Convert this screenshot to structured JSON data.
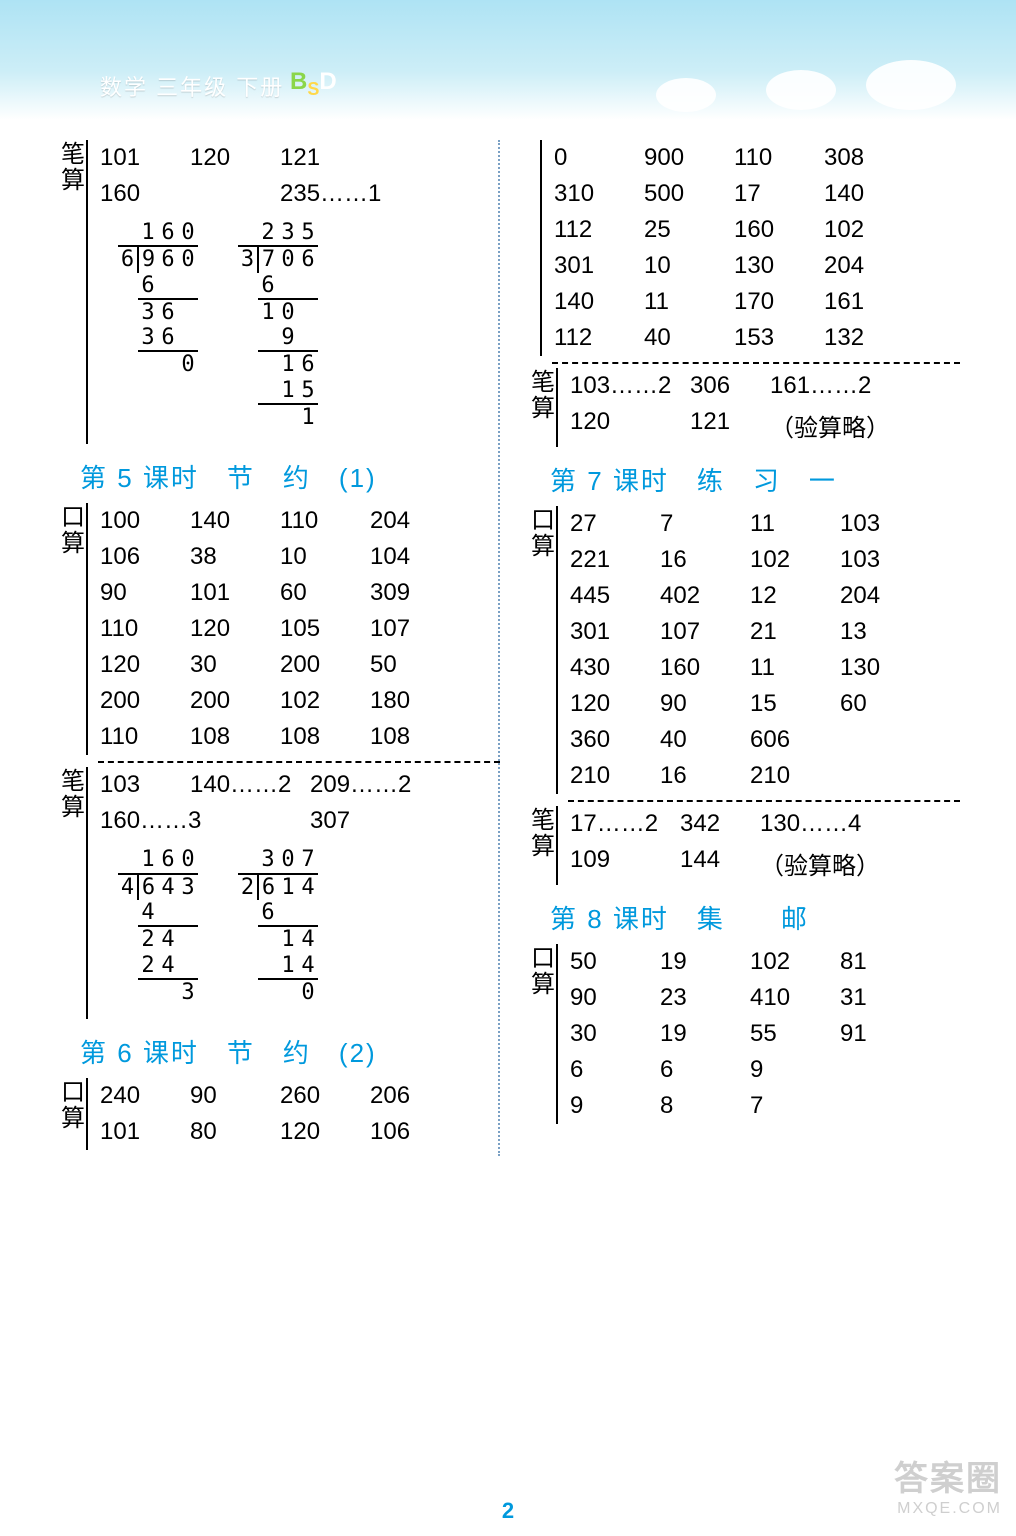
{
  "header": {
    "title": "数学 三年级 下册",
    "bsd": {
      "B": "B",
      "S": "S",
      "D": "D"
    }
  },
  "colors": {
    "accent": "#0099dd",
    "text": "#000000",
    "header_bg_from": "#aee3f4",
    "header_bg_to": "#ffffff"
  },
  "page_number": "2",
  "watermark": {
    "top": "答案圈",
    "bottom": "MXQE.COM"
  },
  "left": {
    "bisuan1": {
      "label": "笔算",
      "rows": [
        [
          "101",
          "120",
          "121",
          ""
        ],
        [
          "160",
          "",
          "235……1",
          ""
        ]
      ],
      "col_widths": [
        "90px",
        "90px",
        "150px",
        "0px"
      ]
    },
    "longdiv1a": {
      "quotient": [
        "1",
        "6",
        "0"
      ],
      "divisor": "6",
      "dividend": [
        "9",
        "6",
        "0"
      ],
      "steps": [
        {
          "vals": [
            "6",
            "",
            ""
          ],
          "underline": 3
        },
        {
          "vals": [
            "3",
            "6",
            ""
          ],
          "underline": 0
        },
        {
          "vals": [
            "3",
            "6",
            ""
          ],
          "underline": 3
        },
        {
          "vals": [
            "",
            "",
            "0"
          ],
          "underline": 0
        }
      ]
    },
    "longdiv1b": {
      "quotient": [
        "2",
        "3",
        "5"
      ],
      "divisor": "3",
      "dividend": [
        "7",
        "0",
        "6"
      ],
      "steps": [
        {
          "vals": [
            "6",
            "",
            ""
          ],
          "underline": 3
        },
        {
          "vals": [
            "1",
            "0",
            ""
          ],
          "underline": 0
        },
        {
          "vals": [
            "",
            "9",
            ""
          ],
          "underline": 3
        },
        {
          "vals": [
            "",
            "1",
            "6"
          ],
          "underline": 0
        },
        {
          "vals": [
            "",
            "1",
            "5"
          ],
          "underline": 3
        },
        {
          "vals": [
            "",
            "",
            "1"
          ],
          "underline": 0
        }
      ]
    },
    "title5": "第 5 课时　节　约　(1)",
    "kousuan5": {
      "label": "口算",
      "cols": [
        "90px",
        "90px",
        "90px",
        "90px"
      ],
      "rows": [
        [
          "100",
          "140",
          "110",
          "204"
        ],
        [
          "106",
          "38",
          "10",
          "104"
        ],
        [
          "90",
          "101",
          "60",
          "309"
        ],
        [
          "110",
          "120",
          "105",
          "107"
        ],
        [
          "120",
          "30",
          "200",
          "50"
        ],
        [
          "200",
          "200",
          "102",
          "180"
        ],
        [
          "110",
          "108",
          "108",
          "108"
        ]
      ]
    },
    "bisuan5": {
      "label": "笔算",
      "rows": [
        [
          "103",
          "140……2",
          "209……2",
          ""
        ],
        [
          "160……3",
          "",
          "307",
          ""
        ]
      ],
      "col_widths": [
        "90px",
        "120px",
        "130px",
        "0px"
      ]
    },
    "longdiv5a": {
      "quotient": [
        "1",
        "6",
        "0"
      ],
      "divisor": "4",
      "dividend": [
        "6",
        "4",
        "3"
      ],
      "steps": [
        {
          "vals": [
            "4",
            "",
            ""
          ],
          "underline": 3
        },
        {
          "vals": [
            "2",
            "4",
            ""
          ],
          "underline": 0
        },
        {
          "vals": [
            "2",
            "4",
            ""
          ],
          "underline": 3
        },
        {
          "vals": [
            "",
            "",
            "3"
          ],
          "underline": 0
        }
      ]
    },
    "longdiv5b": {
      "quotient": [
        "3",
        "0",
        "7"
      ],
      "divisor": "2",
      "dividend": [
        "6",
        "1",
        "4"
      ],
      "steps": [
        {
          "vals": [
            "6",
            "",
            ""
          ],
          "underline": 3
        },
        {
          "vals": [
            "",
            "1",
            "4"
          ],
          "underline": 0
        },
        {
          "vals": [
            "",
            "1",
            "4"
          ],
          "underline": 3
        },
        {
          "vals": [
            "",
            "",
            "0"
          ],
          "underline": 0
        }
      ]
    },
    "title6": "第 6 课时　节　约　(2)",
    "kousuan6": {
      "label": "口算",
      "cols": [
        "90px",
        "90px",
        "90px",
        "90px"
      ],
      "rows": [
        [
          "240",
          "90",
          "260",
          "206"
        ],
        [
          "101",
          "80",
          "120",
          "106"
        ]
      ]
    }
  },
  "right": {
    "kousuan_top": {
      "label": "",
      "cols": [
        "90px",
        "90px",
        "90px",
        "90px"
      ],
      "rows": [
        [
          "0",
          "900",
          "110",
          "308"
        ],
        [
          "310",
          "500",
          "17",
          "140"
        ],
        [
          "112",
          "25",
          "160",
          "102"
        ],
        [
          "301",
          "10",
          "130",
          "204"
        ],
        [
          "140",
          "11",
          "170",
          "161"
        ],
        [
          "112",
          "40",
          "153",
          "132"
        ]
      ]
    },
    "bisuan_top": {
      "label": "笔算",
      "rows": [
        [
          "103……2",
          "306",
          "161……2",
          ""
        ],
        [
          "120",
          "121",
          "（验算略）",
          ""
        ]
      ],
      "col_widths": [
        "120px",
        "80px",
        "150px",
        "0px"
      ]
    },
    "title7": "第 7 课时　练　习　一",
    "kousuan7": {
      "label": "口算",
      "cols": [
        "90px",
        "90px",
        "90px",
        "90px"
      ],
      "rows": [
        [
          "27",
          "7",
          "11",
          "103"
        ],
        [
          "221",
          "16",
          "102",
          "103"
        ],
        [
          "445",
          "402",
          "12",
          "204"
        ],
        [
          "301",
          "107",
          "21",
          "13"
        ],
        [
          "430",
          "160",
          "11",
          "130"
        ],
        [
          "120",
          "90",
          "15",
          "60"
        ],
        [
          "360",
          "40",
          "606",
          ""
        ],
        [
          "210",
          "16",
          "210",
          ""
        ]
      ]
    },
    "bisuan7": {
      "label": "笔算",
      "rows": [
        [
          "17……2",
          "342",
          "130……4",
          ""
        ],
        [
          "109",
          "144",
          "（验算略）",
          ""
        ]
      ],
      "col_widths": [
        "110px",
        "80px",
        "150px",
        "0px"
      ]
    },
    "title8": "第 8 课时　集　　邮",
    "kousuan8": {
      "label": "口算",
      "cols": [
        "90px",
        "90px",
        "90px",
        "90px"
      ],
      "rows": [
        [
          "50",
          "19",
          "102",
          "81"
        ],
        [
          "90",
          "23",
          "410",
          "31"
        ],
        [
          "30",
          "19",
          "55",
          "91"
        ],
        [
          "6",
          "6",
          "9",
          ""
        ],
        [
          "9",
          "8",
          "7",
          ""
        ]
      ]
    }
  }
}
